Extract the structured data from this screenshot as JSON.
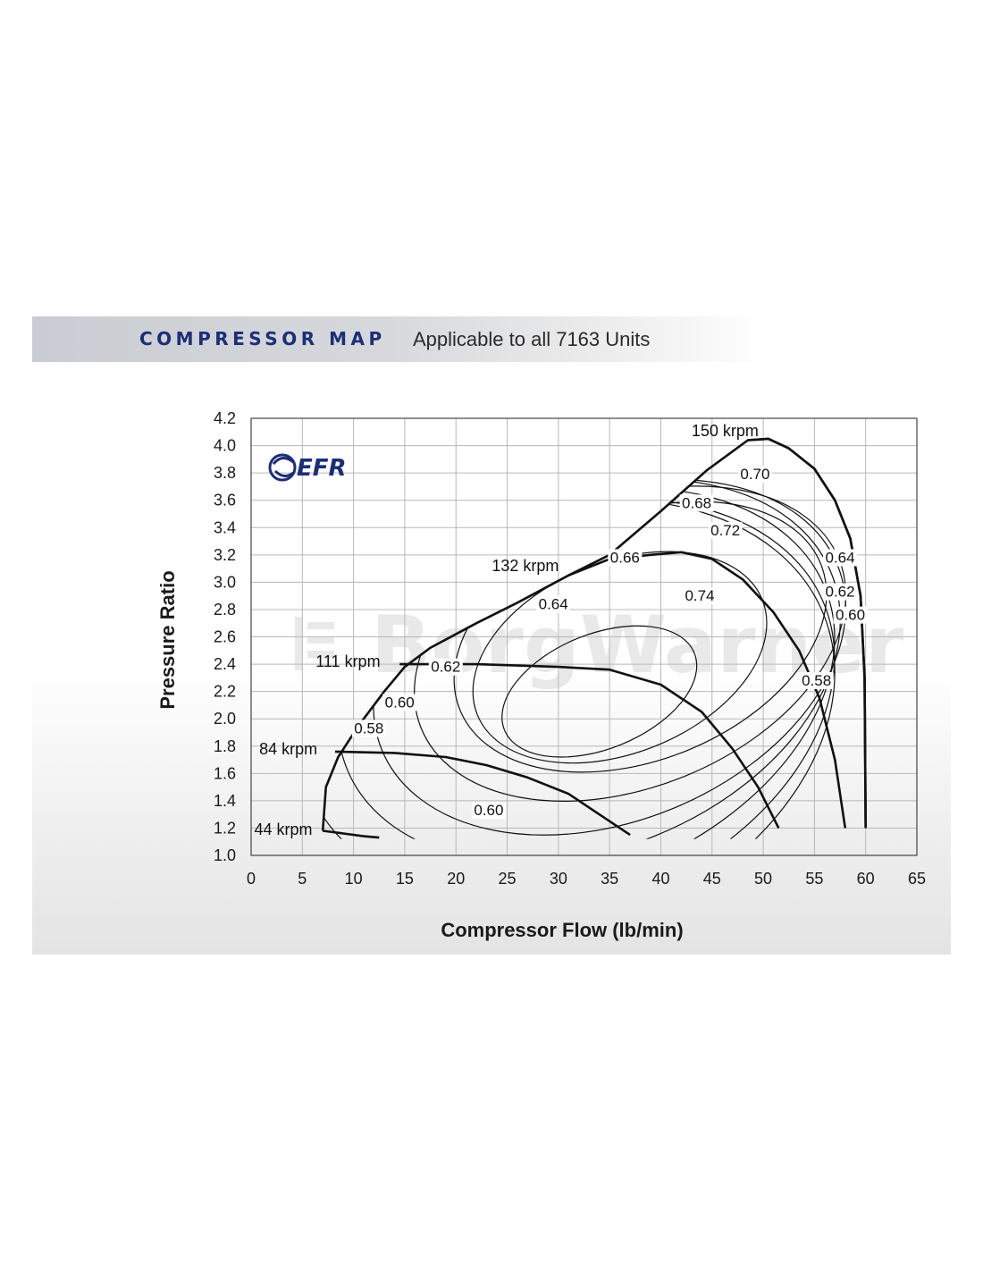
{
  "header": {
    "title": "COMPRESSOR MAP",
    "subtitle": "Applicable to all 7163 Units"
  },
  "logo_text": "EFR",
  "watermark_text": "BorgWarner",
  "colors": {
    "title_blue": "#1c2e78",
    "logo_blue": "#1c2e78",
    "grid": "#b8b8b8",
    "curve": "#111111"
  },
  "chart_data": {
    "type": "line",
    "xlabel": "Compressor Flow (lb/min)",
    "ylabel": "Pressure Ratio",
    "xlim": [
      0,
      65
    ],
    "ylim": [
      1.0,
      4.2
    ],
    "xticks": [
      "0",
      "5",
      "10",
      "15",
      "20",
      "25",
      "30",
      "35",
      "40",
      "45",
      "50",
      "55",
      "60",
      "65"
    ],
    "yticks": [
      "1.0",
      "1.2",
      "1.4",
      "1.6",
      "1.8",
      "2.0",
      "2.2",
      "2.4",
      "2.6",
      "2.8",
      "3.0",
      "3.2",
      "3.4",
      "3.6",
      "3.8",
      "4.0",
      "4.2"
    ],
    "grid": true,
    "surge_line": [
      [
        7,
        1.18
      ],
      [
        7.3,
        1.5
      ],
      [
        8.5,
        1.72
      ],
      [
        10.5,
        1.95
      ],
      [
        13,
        2.2
      ],
      [
        15,
        2.38
      ],
      [
        17.5,
        2.52
      ],
      [
        22,
        2.7
      ],
      [
        26,
        2.85
      ],
      [
        31,
        3.05
      ],
      [
        35,
        3.2
      ],
      [
        40,
        3.52
      ],
      [
        44.5,
        3.82
      ],
      [
        48.5,
        4.04
      ],
      [
        50.5,
        4.05
      ],
      [
        52.5,
        3.98
      ],
      [
        55,
        3.83
      ],
      [
        57,
        3.6
      ],
      [
        58.5,
        3.32
      ],
      [
        59.5,
        2.9
      ],
      [
        59.9,
        2.3
      ],
      [
        60,
        1.2
      ]
    ],
    "speed_lines": [
      {
        "label": "44 krpm",
        "points": [
          [
            7,
            1.18
          ],
          [
            9,
            1.16
          ],
          [
            11,
            1.14
          ],
          [
            12.5,
            1.13
          ]
        ]
      },
      {
        "label": "84 krpm",
        "points": [
          [
            8.2,
            1.76
          ],
          [
            14,
            1.75
          ],
          [
            19,
            1.72
          ],
          [
            23,
            1.66
          ],
          [
            27,
            1.57
          ],
          [
            31,
            1.45
          ],
          [
            34,
            1.3
          ],
          [
            37,
            1.15
          ]
        ]
      },
      {
        "label": "111 krpm",
        "points": [
          [
            14.5,
            2.4
          ],
          [
            22,
            2.4
          ],
          [
            30,
            2.38
          ],
          [
            35,
            2.36
          ],
          [
            40,
            2.25
          ],
          [
            44,
            2.05
          ],
          [
            47,
            1.78
          ],
          [
            49.5,
            1.5
          ],
          [
            51.5,
            1.2
          ]
        ]
      },
      {
        "label": "132 krpm",
        "points": [
          [
            31,
            3.05
          ],
          [
            35,
            3.17
          ],
          [
            39,
            3.2
          ],
          [
            42,
            3.22
          ],
          [
            45,
            3.17
          ],
          [
            48,
            3.02
          ],
          [
            51,
            2.78
          ],
          [
            53.5,
            2.5
          ],
          [
            55.5,
            2.15
          ],
          [
            57,
            1.7
          ],
          [
            58,
            1.2
          ]
        ]
      },
      {
        "label": "150 krpm",
        "points": [
          [
            48.5,
            4.04
          ],
          [
            50.5,
            4.05
          ],
          [
            52.5,
            3.98
          ],
          [
            55,
            3.83
          ],
          [
            57,
            3.6
          ],
          [
            58.5,
            3.32
          ],
          [
            59.5,
            2.9
          ],
          [
            59.9,
            2.3
          ],
          [
            60,
            1.2
          ]
        ]
      }
    ],
    "efficiency_islands": [
      {
        "label": "0.74",
        "center": [
          34,
          2.2
        ],
        "rx": 10,
        "ry": 0.42
      },
      {
        "label": "0.72",
        "center": [
          36,
          2.45
        ],
        "rx": 15,
        "ry": 0.7
      },
      {
        "label": "0.70",
        "center": [
          38,
          2.6
        ],
        "rx": 19,
        "ry": 0.9
      },
      {
        "label": "0.68",
        "center": [
          37,
          2.55
        ],
        "rx": 22,
        "ry": 1.05
      },
      {
        "label": "0.66",
        "center": [
          35,
          2.45
        ],
        "rx": 24,
        "ry": 1.2
      },
      {
        "label": "0.64",
        "center": [
          33,
          2.35
        ],
        "rx": 25.5,
        "ry": 1.3
      },
      {
        "label": "0.62",
        "center": [
          31,
          2.2
        ],
        "rx": 27,
        "ry": 1.38
      },
      {
        "label": "0.60",
        "center": [
          30,
          2.05
        ],
        "rx": 28,
        "ry": 1.45
      },
      {
        "label": "0.58",
        "center": [
          29,
          1.95
        ],
        "rx": 29,
        "ry": 1.55
      }
    ],
    "efficiency_labels": [
      {
        "text": "0.74",
        "x": 43.8,
        "y": 2.87
      },
      {
        "text": "0.72",
        "x": 46.3,
        "y": 3.35
      },
      {
        "text": "0.70",
        "x": 49.2,
        "y": 3.76
      },
      {
        "text": "0.68",
        "x": 43.5,
        "y": 3.55
      },
      {
        "text": "0.66",
        "x": 36.5,
        "y": 3.15
      },
      {
        "text": "0.64",
        "x": 29.5,
        "y": 2.81
      },
      {
        "text": "0.62",
        "x": 19.0,
        "y": 2.35
      },
      {
        "text": "0.60",
        "x": 14.5,
        "y": 2.09
      },
      {
        "text": "0.58",
        "x": 11.5,
        "y": 1.9
      },
      {
        "text": "0.60",
        "x": 23.2,
        "y": 1.3
      },
      {
        "text": "0.64",
        "x": 57.5,
        "y": 3.15
      },
      {
        "text": "0.62",
        "x": 57.5,
        "y": 2.9
      },
      {
        "text": "0.60",
        "x": 58.5,
        "y": 2.73
      },
      {
        "text": "0.58",
        "x": 55.2,
        "y": 2.25
      }
    ],
    "speed_label_positions": [
      {
        "text": "150 krpm",
        "x": 43.0,
        "y": 4.07
      },
      {
        "text": "132 krpm",
        "x": 23.5,
        "y": 3.08
      },
      {
        "text": "111 krpm",
        "x": 6.3,
        "y": 2.38
      },
      {
        "text": "84 krpm",
        "x": 0.8,
        "y": 1.74
      },
      {
        "text": "44 krpm",
        "x": 0.3,
        "y": 1.15
      }
    ]
  }
}
